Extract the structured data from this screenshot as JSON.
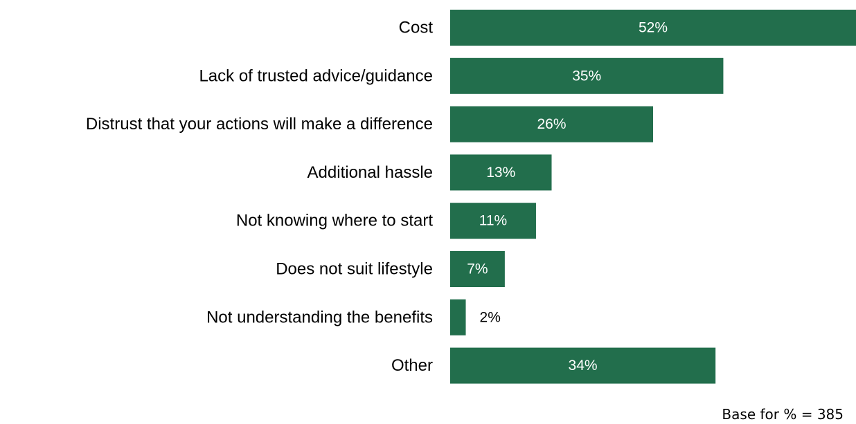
{
  "chart_data": {
    "type": "bar",
    "orientation": "horizontal",
    "categories": [
      "Cost",
      "Lack of trusted advice/guidance",
      "Distrust that your actions will make a difference",
      "Additional hassle",
      "Not knowing where to start",
      "Does not suit lifestyle",
      "Not understanding the benefits",
      "Other"
    ],
    "values": [
      52,
      35,
      26,
      13,
      11,
      7,
      2,
      34
    ],
    "value_labels": [
      "52%",
      "35%",
      "26%",
      "13%",
      "11%",
      "7%",
      "2%",
      "34%"
    ],
    "xlim": [
      0,
      52
    ],
    "grid": false,
    "legend": "none",
    "bar_color": "#226E4C",
    "inside_label_color": "#FFFFFF",
    "outside_label_color": "#000000"
  },
  "footnote": "Base for % = 385"
}
